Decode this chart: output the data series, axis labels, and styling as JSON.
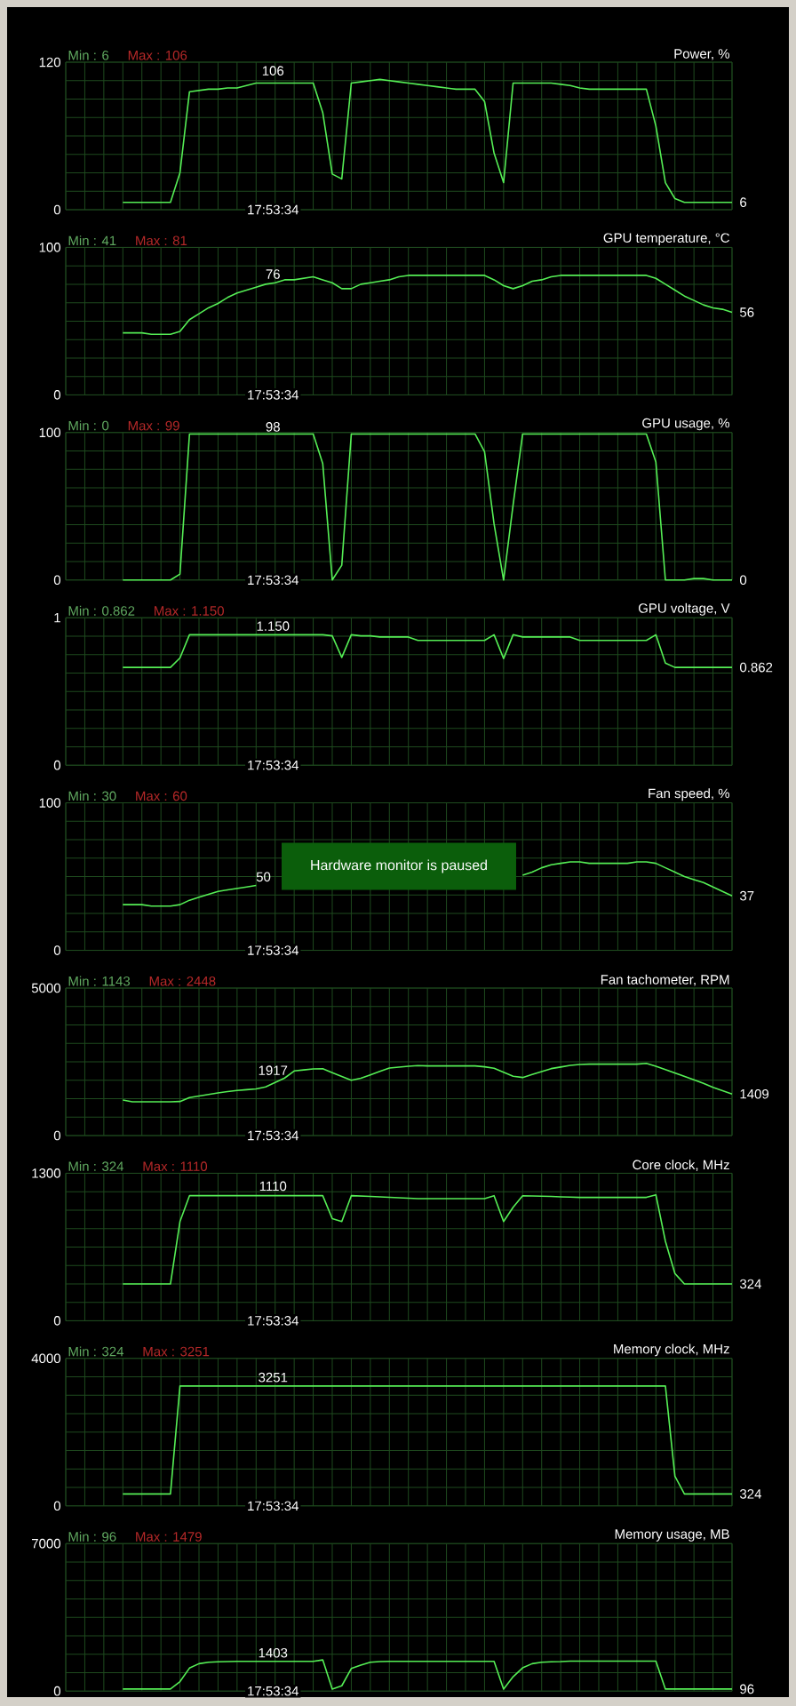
{
  "chart_data": [
    {
      "type": "line",
      "title": "Power, %",
      "annotations": [
        "Min : 6",
        "Max : 106",
        "17:53:34",
        {
          "text": "106",
          "y": 106
        },
        "6"
      ],
      "categories": [
        null,
        null,
        null,
        null,
        null,
        null,
        null,
        null,
        null,
        null,
        null,
        null,
        null,
        null,
        null,
        null,
        null,
        null,
        null,
        null,
        null,
        null,
        null,
        null,
        null,
        null,
        null,
        null,
        null,
        null,
        null,
        null,
        null,
        null,
        null,
        null,
        null,
        null,
        null,
        null,
        null,
        null,
        null,
        null,
        null,
        null,
        null,
        null,
        null,
        null,
        null,
        null,
        null,
        null,
        null,
        null,
        null,
        null,
        null,
        null,
        null,
        null,
        null,
        null,
        null
      ],
      "series": [
        {
          "color": "#55ee55",
          "values": [
            6,
            6,
            6,
            6,
            6,
            6,
            30,
            96,
            97,
            98,
            98,
            99,
            99,
            101,
            103,
            103,
            103,
            103,
            103,
            103,
            103,
            79,
            29,
            25,
            103,
            104,
            105,
            106,
            105,
            104,
            103,
            102,
            101,
            100,
            99,
            98,
            98,
            98,
            88,
            46,
            22,
            103,
            103,
            103,
            103,
            103,
            102,
            101,
            99,
            98,
            98,
            98,
            98,
            98,
            98,
            98,
            68,
            22,
            9,
            6,
            6,
            6,
            6,
            6,
            6
          ]
        }
      ],
      "ylim": [
        0,
        120
      ],
      "yticks": [
        0,
        {
          "value": 15,
          "label": null
        },
        {
          "value": 30,
          "label": null
        },
        {
          "value": 45,
          "label": null
        },
        {
          "value": 60,
          "label": null
        },
        {
          "value": 75,
          "label": null
        },
        {
          "value": 90,
          "label": null
        },
        {
          "value": 105,
          "label": null
        },
        120
      ],
      "grid": true,
      "tick_labels": "y"
    },
    {
      "type": "line",
      "title": "GPU temperature, °C",
      "annotations": [
        "Min : 41",
        "Max : 81",
        "17:53:34",
        {
          "text": "76",
          "y": 76
        },
        "56"
      ],
      "categories": [
        null,
        null,
        null,
        null,
        null,
        null,
        null,
        null,
        null,
        null,
        null,
        null,
        null,
        null,
        null,
        null,
        null,
        null,
        null,
        null,
        null,
        null,
        null,
        null,
        null,
        null,
        null,
        null,
        null,
        null,
        null,
        null,
        null,
        null,
        null,
        null,
        null,
        null,
        null,
        null,
        null,
        null,
        null,
        null,
        null,
        null,
        null,
        null,
        null,
        null,
        null,
        null,
        null,
        null,
        null,
        null,
        null,
        null,
        null,
        null,
        null,
        null,
        null,
        null,
        null
      ],
      "series": [
        {
          "color": "#55ee55",
          "values": [
            42,
            42,
            42,
            41,
            41,
            41,
            43,
            51,
            55,
            59,
            62,
            66,
            69,
            71,
            73,
            75,
            76,
            78,
            78,
            79,
            80,
            78,
            76,
            72,
            72,
            75,
            76,
            77,
            78,
            80,
            81,
            81,
            81,
            81,
            81,
            81,
            81,
            81,
            81,
            78,
            74,
            72,
            74,
            77,
            78,
            80,
            81,
            81,
            81,
            81,
            81,
            81,
            81,
            81,
            81,
            81,
            79,
            75,
            71,
            67,
            64,
            61,
            59,
            58,
            56
          ]
        }
      ],
      "ylim": [
        0,
        100
      ],
      "yticks": [
        0,
        {
          "value": 12.5,
          "label": null
        },
        {
          "value": 25,
          "label": null
        },
        {
          "value": 37.5,
          "label": null
        },
        {
          "value": 50,
          "label": null
        },
        {
          "value": 62.5,
          "label": null
        },
        {
          "value": 75,
          "label": null
        },
        {
          "value": 87.5,
          "label": null
        },
        100
      ],
      "grid": true,
      "tick_labels": "y"
    },
    {
      "type": "line",
      "title": "GPU usage, %",
      "annotations": [
        "Min : 0",
        "Max : 99",
        "17:53:34",
        {
          "text": "98",
          "y": 98
        },
        "0"
      ],
      "categories": [
        null,
        null,
        null,
        null,
        null,
        null,
        null,
        null,
        null,
        null,
        null,
        null,
        null,
        null,
        null,
        null,
        null,
        null,
        null,
        null,
        null,
        null,
        null,
        null,
        null,
        null,
        null,
        null,
        null,
        null,
        null,
        null,
        null,
        null,
        null,
        null,
        null,
        null,
        null,
        null,
        null,
        null,
        null,
        null,
        null,
        null,
        null,
        null,
        null,
        null,
        null,
        null,
        null,
        null,
        null,
        null,
        null,
        null,
        null,
        null,
        null,
        null,
        null,
        null,
        null
      ],
      "series": [
        {
          "color": "#55ee55",
          "values": [
            0,
            0,
            0,
            0,
            0,
            0,
            4,
            99,
            99,
            99,
            99,
            99,
            99,
            99,
            99,
            99,
            99,
            99,
            99,
            99,
            99,
            79,
            0,
            10,
            99,
            99,
            99,
            99,
            99,
            99,
            99,
            99,
            99,
            99,
            99,
            99,
            99,
            99,
            87,
            38,
            0,
            51,
            99,
            99,
            99,
            99,
            99,
            99,
            99,
            99,
            99,
            99,
            99,
            99,
            99,
            99,
            80,
            0,
            0,
            0,
            1,
            1,
            0,
            0,
            0
          ]
        }
      ],
      "ylim": [
        0,
        100
      ],
      "yticks": [
        0,
        {
          "value": 12.5,
          "label": null
        },
        {
          "value": 25,
          "label": null
        },
        {
          "value": 37.5,
          "label": null
        },
        {
          "value": 50,
          "label": null
        },
        {
          "value": 62.5,
          "label": null
        },
        {
          "value": 75,
          "label": null
        },
        {
          "value": 87.5,
          "label": null
        },
        100
      ],
      "grid": true,
      "tick_labels": "y"
    },
    {
      "type": "line",
      "title": "GPU voltage, V",
      "annotations": [
        "Min : 0.862",
        "Max : 1.150",
        "17:53:34",
        {
          "text": "1.150",
          "y": 1.15
        },
        "0.862"
      ],
      "categories": [
        null,
        null,
        null,
        null,
        null,
        null,
        null,
        null,
        null,
        null,
        null,
        null,
        null,
        null,
        null,
        null,
        null,
        null,
        null,
        null,
        null,
        null,
        null,
        null,
        null,
        null,
        null,
        null,
        null,
        null,
        null,
        null,
        null,
        null,
        null,
        null,
        null,
        null,
        null,
        null,
        null,
        null,
        null,
        null,
        null,
        null,
        null,
        null,
        null,
        null,
        null,
        null,
        null,
        null,
        null,
        null,
        null,
        null,
        null,
        null,
        null,
        null,
        null,
        null,
        null
      ],
      "series": [
        {
          "color": "#55ee55",
          "values": [
            0.862,
            0.862,
            0.862,
            0.862,
            0.862,
            0.862,
            0.945,
            1.15,
            1.15,
            1.15,
            1.15,
            1.15,
            1.15,
            1.15,
            1.15,
            1.15,
            1.15,
            1.15,
            1.15,
            1.15,
            1.15,
            1.15,
            1.14,
            0.95,
            1.15,
            1.14,
            1.14,
            1.13,
            1.13,
            1.13,
            1.13,
            1.1,
            1.1,
            1.1,
            1.1,
            1.1,
            1.1,
            1.1,
            1.1,
            1.15,
            0.94,
            1.15,
            1.13,
            1.13,
            1.13,
            1.13,
            1.13,
            1.13,
            1.1,
            1.1,
            1.1,
            1.1,
            1.1,
            1.1,
            1.1,
            1.1,
            1.15,
            0.9,
            0.862,
            0.862,
            0.862,
            0.862,
            0.862,
            0.862,
            0.862
          ]
        }
      ],
      "ylim": [
        0,
        1.3
      ],
      "yticks": [
        0,
        {
          "value": 0.1625,
          "label": null
        },
        {
          "value": 0.325,
          "label": null
        },
        {
          "value": 0.4875,
          "label": null
        },
        {
          "value": 0.65,
          "label": null
        },
        {
          "value": 0.8125,
          "label": null
        },
        {
          "value": 0.975,
          "label": null
        },
        {
          "value": 1.1375,
          "label": null
        },
        {
          "value": 1.3,
          "label": "1"
        }
      ],
      "grid": true,
      "tick_labels": "y"
    },
    {
      "type": "line",
      "title": "Fan speed, %",
      "annotations": [
        "Min : 30",
        "Max : 60",
        "17:53:34",
        "50",
        "Hardware monitor is paused",
        "37"
      ],
      "categories": [
        null,
        null,
        null,
        null,
        null,
        null,
        null,
        null,
        null,
        null,
        null,
        null,
        null,
        null,
        null,
        null,
        null,
        null,
        null,
        null,
        null,
        null,
        null,
        null,
        null,
        null,
        null,
        null,
        null,
        null,
        null,
        null,
        null,
        null,
        null,
        null,
        null,
        null,
        null,
        null,
        null,
        null,
        null,
        null,
        null,
        null,
        null,
        null,
        null,
        null,
        null,
        null,
        null,
        null,
        null,
        null,
        null,
        null,
        null,
        null,
        null,
        null,
        null,
        null,
        null
      ],
      "series": [
        {
          "color": "#55ee55",
          "values": [
            31,
            31,
            31,
            30,
            30,
            30,
            31,
            34,
            36,
            38,
            40,
            41,
            42,
            43,
            44,
            null,
            null,
            null,
            null,
            null,
            null,
            null,
            null,
            null,
            null,
            null,
            null,
            null,
            null,
            null,
            null,
            null,
            null,
            null,
            null,
            null,
            null,
            null,
            null,
            null,
            null,
            null,
            51,
            53,
            56,
            58,
            59,
            60,
            60,
            59,
            59,
            59,
            59,
            59,
            60,
            60,
            59,
            56,
            53,
            50,
            48,
            46,
            43,
            40,
            37
          ]
        }
      ],
      "ylim": [
        0,
        100
      ],
      "yticks": [
        0,
        {
          "value": 12.5,
          "label": null
        },
        {
          "value": 25,
          "label": null
        },
        {
          "value": 37.5,
          "label": null
        },
        {
          "value": 50,
          "label": null
        },
        {
          "value": 62.5,
          "label": null
        },
        {
          "value": 75,
          "label": null
        },
        {
          "value": 87.5,
          "label": null
        },
        100
      ],
      "grid": true,
      "tick_labels": "y"
    },
    {
      "type": "line",
      "title": "Fan tachometer, RPM",
      "annotations": [
        "Min : 1143",
        "Max : 2448",
        "17:53:34",
        {
          "text": "1917",
          "y": 1917
        },
        "1409"
      ],
      "categories": [
        null,
        null,
        null,
        null,
        null,
        null,
        null,
        null,
        null,
        null,
        null,
        null,
        null,
        null,
        null,
        null,
        null,
        null,
        null,
        null,
        null,
        null,
        null,
        null,
        null,
        null,
        null,
        null,
        null,
        null,
        null,
        null,
        null,
        null,
        null,
        null,
        null,
        null,
        null,
        null,
        null,
        null,
        null,
        null,
        null,
        null,
        null,
        null,
        null,
        null,
        null,
        null,
        null,
        null,
        null,
        null,
        null,
        null,
        null,
        null,
        null,
        null,
        null,
        null,
        null
      ],
      "series": [
        {
          "color": "#55ee55",
          "values": [
            1205,
            1143,
            1143,
            1143,
            1143,
            1143,
            1155,
            1285,
            1338,
            1391,
            1444,
            1492,
            1526,
            1555,
            1582,
            1650,
            1800,
            1950,
            2189,
            2225,
            2260,
            2263,
            2133,
            2003,
            1873,
            1940,
            2056,
            2173,
            2289,
            2318,
            2347,
            2370,
            2360,
            2360,
            2360,
            2360,
            2360,
            2360,
            2330,
            2282,
            2146,
            2010,
            1968,
            2068,
            2168,
            2269,
            2323,
            2377,
            2410,
            2420,
            2420,
            2420,
            2420,
            2420,
            2420,
            2448,
            2350,
            2236,
            2120,
            2004,
            1888,
            1771,
            1633,
            1520,
            1409
          ]
        }
      ],
      "ylim": [
        0,
        5000
      ],
      "yticks": [
        0,
        {
          "value": 625,
          "label": null
        },
        {
          "value": 1250,
          "label": null
        },
        {
          "value": 1875,
          "label": null
        },
        {
          "value": 2500,
          "label": null
        },
        {
          "value": 3125,
          "label": null
        },
        {
          "value": 3750,
          "label": null
        },
        {
          "value": 4375,
          "label": null
        },
        5000
      ],
      "grid": true,
      "tick_labels": "y"
    },
    {
      "type": "line",
      "title": "Core clock, MHz",
      "annotations": [
        "Min : 324",
        "Max : 1110",
        "17:53:34",
        {
          "text": "1110",
          "y": 1110
        },
        "324"
      ],
      "categories": [
        null,
        null,
        null,
        null,
        null,
        null,
        null,
        null,
        null,
        null,
        null,
        null,
        null,
        null,
        null,
        null,
        null,
        null,
        null,
        null,
        null,
        null,
        null,
        null,
        null,
        null,
        null,
        null,
        null,
        null,
        null,
        null,
        null,
        null,
        null,
        null,
        null,
        null,
        null,
        null,
        null,
        null,
        null,
        null,
        null,
        null,
        null,
        null,
        null,
        null,
        null,
        null,
        null,
        null,
        null,
        null,
        null,
        null,
        null,
        null,
        null,
        null,
        null,
        null,
        null
      ],
      "series": [
        {
          "color": "#55ee55",
          "values": [
            324,
            324,
            324,
            324,
            324,
            324,
            874,
            1102,
            1102,
            1102,
            1102,
            1102,
            1102,
            1102,
            1102,
            1102,
            1102,
            1102,
            1102,
            1102,
            1102,
            1102,
            900,
            874,
            1102,
            1099,
            1096,
            1092,
            1088,
            1084,
            1080,
            1076,
            1076,
            1076,
            1076,
            1076,
            1076,
            1076,
            1076,
            1102,
            874,
            1000,
            1101,
            1099,
            1097,
            1095,
            1092,
            1090,
            1087,
            1087,
            1087,
            1087,
            1087,
            1087,
            1087,
            1087,
            1110,
            700,
            416,
            324,
            324,
            324,
            324,
            324,
            324
          ]
        }
      ],
      "ylim": [
        0,
        1300
      ],
      "yticks": [
        0,
        {
          "value": 162.5,
          "label": null
        },
        {
          "value": 325,
          "label": null
        },
        {
          "value": 487.5,
          "label": null
        },
        {
          "value": 650,
          "label": null
        },
        {
          "value": 812.5,
          "label": null
        },
        {
          "value": 975,
          "label": null
        },
        {
          "value": 1137.5,
          "label": null
        },
        1300
      ],
      "grid": true,
      "tick_labels": "y"
    },
    {
      "type": "line",
      "title": "Memory clock, MHz",
      "annotations": [
        "Min : 324",
        "Max : 3251",
        "17:53:34",
        {
          "text": "3251",
          "y": 3251
        },
        "324"
      ],
      "categories": [
        null,
        null,
        null,
        null,
        null,
        null,
        null,
        null,
        null,
        null,
        null,
        null,
        null,
        null,
        null,
        null,
        null,
        null,
        null,
        null,
        null,
        null,
        null,
        null,
        null,
        null,
        null,
        null,
        null,
        null,
        null,
        null,
        null,
        null,
        null,
        null,
        null,
        null,
        null,
        null,
        null,
        null,
        null,
        null,
        null,
        null,
        null,
        null,
        null,
        null,
        null,
        null,
        null,
        null,
        null,
        null,
        null,
        null,
        null,
        null,
        null,
        null,
        null,
        null,
        null
      ],
      "series": [
        {
          "color": "#55ee55",
          "values": [
            324,
            324,
            324,
            324,
            324,
            324,
            3251,
            3251,
            3251,
            3251,
            3251,
            3251,
            3251,
            3251,
            3251,
            3251,
            3251,
            3251,
            3251,
            3251,
            3251,
            3251,
            3251,
            3251,
            3251,
            3251,
            3251,
            3251,
            3251,
            3251,
            3251,
            3251,
            3251,
            3251,
            3251,
            3251,
            3251,
            3251,
            3251,
            3251,
            3251,
            3251,
            3251,
            3251,
            3251,
            3251,
            3251,
            3251,
            3251,
            3251,
            3251,
            3251,
            3251,
            3251,
            3251,
            3251,
            3251,
            3251,
            806,
            324,
            324,
            324,
            324,
            324,
            324
          ]
        }
      ],
      "ylim": [
        0,
        4000
      ],
      "yticks": [
        0,
        {
          "value": 500,
          "label": null
        },
        {
          "value": 1000,
          "label": null
        },
        {
          "value": 1500,
          "label": null
        },
        {
          "value": 2000,
          "label": null
        },
        {
          "value": 2500,
          "label": null
        },
        {
          "value": 3000,
          "label": null
        },
        {
          "value": 3500,
          "label": null
        },
        4000
      ],
      "grid": true,
      "tick_labels": "y"
    },
    {
      "type": "line",
      "title": "Memory usage, MB",
      "annotations": [
        "Min : 96",
        "Max : 1479",
        "17:53:34",
        {
          "text": "1403",
          "y": 1403
        },
        "96"
      ],
      "categories": [
        null,
        null,
        null,
        null,
        null,
        null,
        null,
        null,
        null,
        null,
        null,
        null,
        null,
        null,
        null,
        null,
        null,
        null,
        null,
        null,
        null,
        null,
        null,
        null,
        null,
        null,
        null,
        null,
        null,
        null,
        null,
        null,
        null,
        null,
        null,
        null,
        null,
        null,
        null,
        null,
        null,
        null,
        null,
        null,
        null,
        null,
        null,
        null,
        null,
        null,
        null,
        null,
        null,
        null,
        null,
        null,
        null,
        null,
        null,
        null,
        null,
        null,
        null,
        null,
        null
      ],
      "series": [
        {
          "color": "#55ee55",
          "values": [
            96,
            96,
            96,
            96,
            96,
            96,
            450,
            1090,
            1300,
            1370,
            1390,
            1400,
            1411,
            1411,
            1411,
            1411,
            1411,
            1411,
            1411,
            1411,
            1411,
            1479,
            96,
            250,
            1072,
            1230,
            1370,
            1400,
            1411,
            1411,
            1411,
            1411,
            1411,
            1411,
            1411,
            1411,
            1411,
            1411,
            1411,
            1411,
            96,
            678,
            1100,
            1300,
            1370,
            1390,
            1400,
            1420,
            1420,
            1420,
            1420,
            1420,
            1420,
            1420,
            1420,
            1420,
            1420,
            96,
            96,
            96,
            96,
            96,
            96,
            96,
            96
          ]
        }
      ],
      "ylim": [
        0,
        7000
      ],
      "yticks": [
        0,
        {
          "value": 875,
          "label": null
        },
        {
          "value": 1750,
          "label": null
        },
        {
          "value": 2625,
          "label": null
        },
        {
          "value": 3500,
          "label": null
        },
        {
          "value": 4375,
          "label": null
        },
        {
          "value": 5250,
          "label": null
        },
        {
          "value": 6125,
          "label": null
        },
        7000
      ],
      "grid": true,
      "tick_labels": "y"
    }
  ]
}
